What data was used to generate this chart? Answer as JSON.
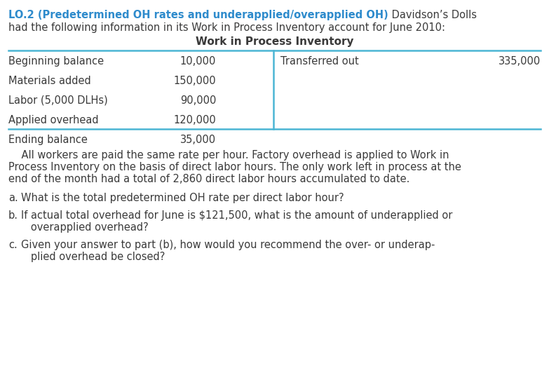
{
  "title_bold": "LO.2 (Predetermined OH rates and underapplied/overapplied OH)",
  "title_normal_end": " Davidson’s Dolls",
  "title_line2": "had the following information in its Work in Process Inventory account for June 2010:",
  "table_title": "Work in Process Inventory",
  "left_items": [
    [
      "Beginning balance",
      "10,000"
    ],
    [
      "Materials added",
      "150,000"
    ],
    [
      "Labor (5,000 DLHs)",
      "90,000"
    ],
    [
      "Applied overhead",
      "120,000"
    ]
  ],
  "right_items": [
    [
      "Transferred out",
      "335,000"
    ]
  ],
  "ending_label": "Ending balance",
  "ending_value": "35,000",
  "paragraph_lines": [
    "    All workers are paid the same rate per hour. Factory overhead is applied to Work in",
    "Process Inventory on the basis of direct labor hours. The only work left in process at the",
    "end of the month had a total of 2,860 direct labor hours accumulated to date."
  ],
  "q_a_label": "a.",
  "q_a_text": "What is the total predetermined OH rate per direct labor hour?",
  "q_b_label": "b.",
  "q_b_lines": [
    "If actual total overhead for June is $121,500, what is the amount of underapplied or",
    "   overapplied overhead?"
  ],
  "q_c_label": "c.",
  "q_c_lines": [
    "Given your answer to part (b), how would you recommend the over- or underap-",
    "   plied overhead be closed?"
  ],
  "bold_color": "#2e8bcc",
  "table_line_color": "#4ab5d4",
  "bg_color": "#ffffff",
  "text_color": "#3a3a3a",
  "font_size": 10.5,
  "table_font_size": 10.5
}
